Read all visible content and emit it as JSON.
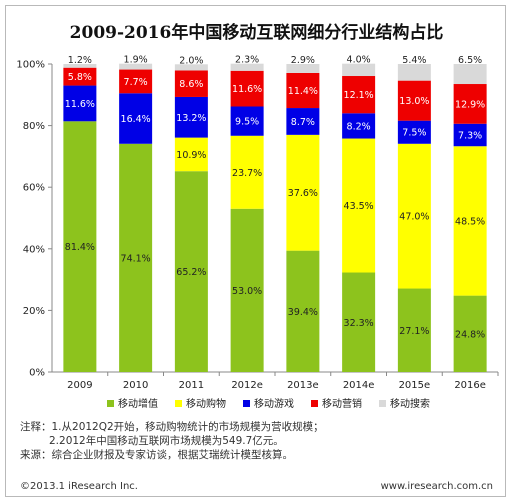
{
  "chart_data": {
    "type": "bar",
    "stacked": true,
    "title": "2009-2016年中国移动互联网细分行业结构占比",
    "categories": [
      "2009",
      "2010",
      "2011",
      "2012e",
      "2013e",
      "2014e",
      "2015e",
      "2016e"
    ],
    "ylim": [
      0,
      100
    ],
    "yticks": [
      "0%",
      "20%",
      "40%",
      "60%",
      "80%",
      "100%"
    ],
    "series": [
      {
        "name": "移动增值",
        "color": "#8dc31d",
        "values": [
          81.4,
          74.1,
          65.2,
          53.0,
          39.4,
          32.3,
          27.1,
          24.8
        ],
        "labels": [
          "81.4%",
          "74.1%",
          "65.2%",
          "53.0%",
          "39.4%",
          "32.3%",
          "27.1%",
          "24.8%"
        ]
      },
      {
        "name": "移动购物",
        "color": "#ffff00",
        "values": [
          0.0,
          0.0,
          10.9,
          23.7,
          37.6,
          43.5,
          47.0,
          48.5
        ],
        "labels": [
          "",
          "",
          "10.9%",
          "23.7%",
          "37.6%",
          "43.5%",
          "47.0%",
          "48.5%"
        ]
      },
      {
        "name": "移动游戏",
        "color": "#0000e6",
        "values": [
          11.6,
          16.4,
          13.2,
          9.5,
          8.7,
          8.2,
          7.5,
          7.3
        ],
        "labels": [
          "11.6%",
          "16.4%",
          "13.2%",
          "9.5%",
          "8.7%",
          "8.2%",
          "7.5%",
          "7.3%"
        ]
      },
      {
        "name": "移动营销",
        "color": "#ee0000",
        "values": [
          5.8,
          7.7,
          8.6,
          11.6,
          11.4,
          12.1,
          13.0,
          12.9
        ],
        "labels": [
          "5.8%",
          "7.7%",
          "8.6%",
          "11.6%",
          "11.4%",
          "12.1%",
          "13.0%",
          "12.9%"
        ]
      },
      {
        "name": "移动搜索",
        "color": "#d9d9d9",
        "values": [
          1.2,
          1.9,
          2.0,
          2.3,
          2.9,
          4.0,
          5.4,
          6.5
        ],
        "labels": [
          "1.2%",
          "1.9%",
          "2.0%",
          "2.3%",
          "2.9%",
          "4.0%",
          "5.4%",
          "6.5%"
        ]
      }
    ],
    "legend_position": "bottom",
    "grid": false
  },
  "notes": [
    "注释：1.从2012Q2开始，移动购物统计的市场规模为营收规模；",
    "2.2012年中国移动互联网市场规模为549.7亿元。",
    "来源：综合企业财报及专家访谈，根据艾瑞统计模型核算。"
  ],
  "footer": {
    "left": "©2013.1 iResearch Inc.",
    "right": "www.iresearch.com.cn"
  }
}
